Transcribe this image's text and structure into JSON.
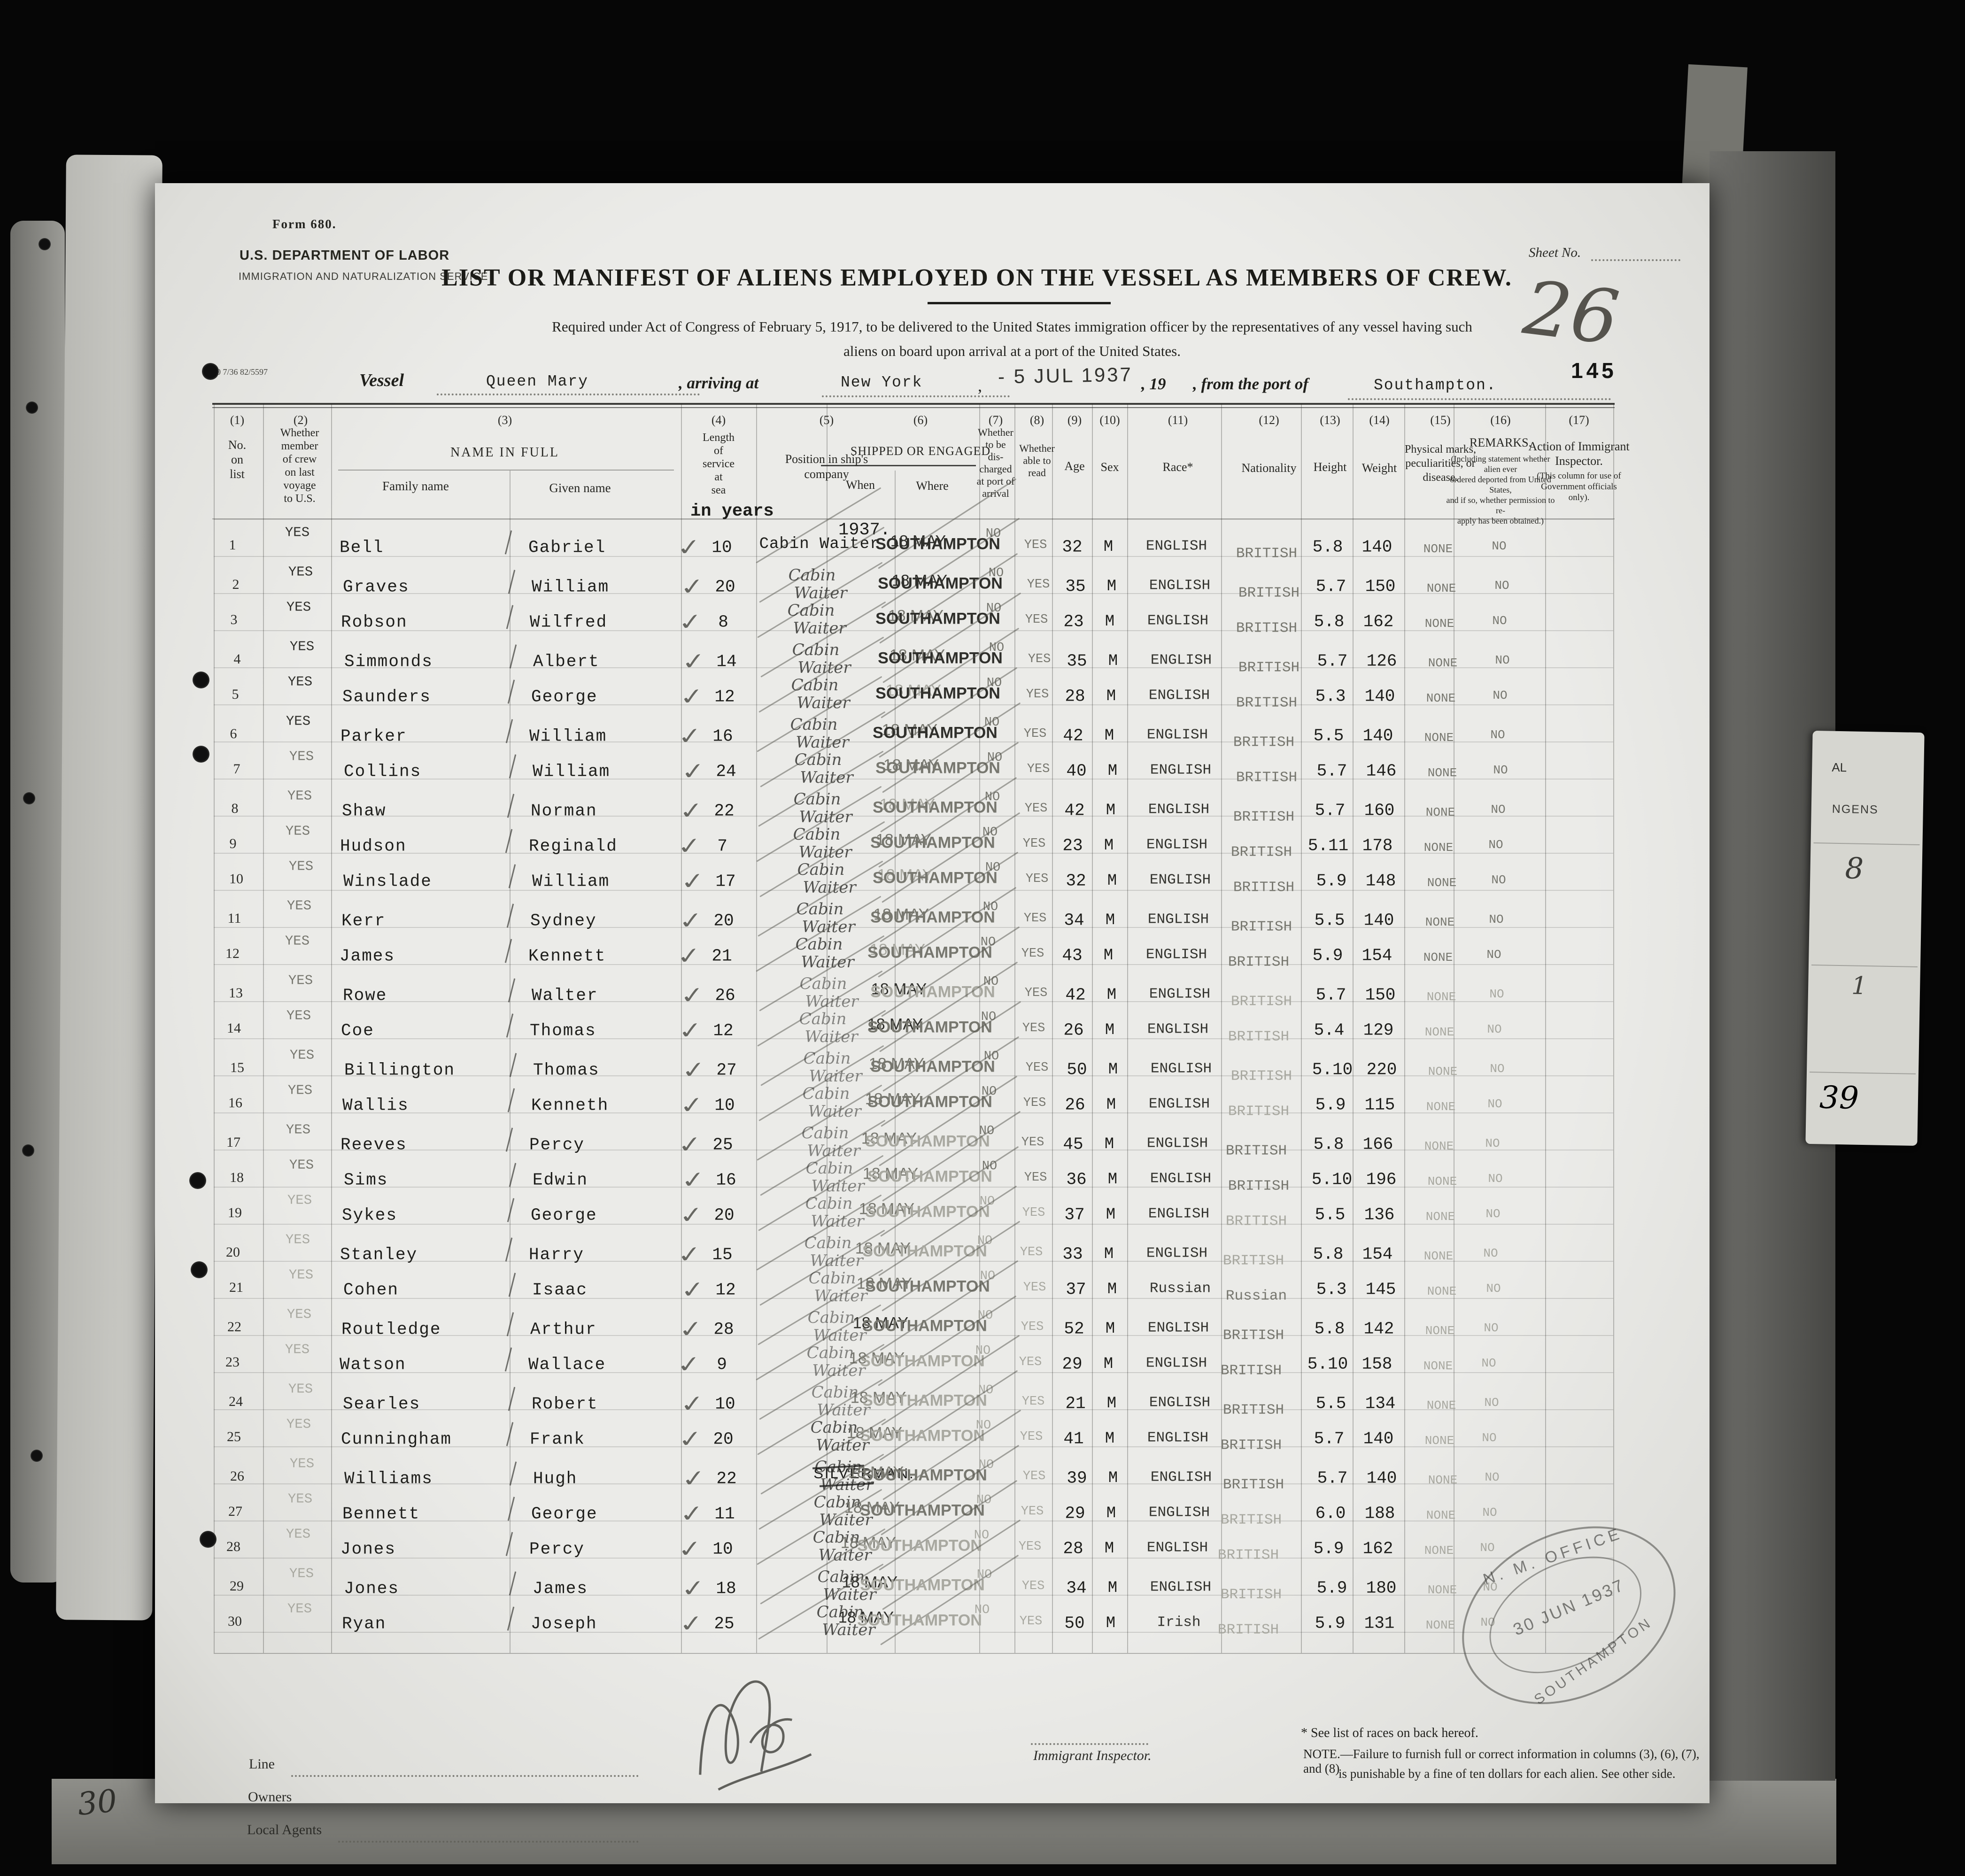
{
  "scan": {
    "sheet_no_handwritten": "26",
    "page_number_stamp": "145",
    "bottom_left_handwritten": "30",
    "form_print_code": "00 7/36 82/5597",
    "office_stamp": {
      "line1": "N. M. OFFICE",
      "line2": "30 JUN 1937",
      "line3": "SOUTHAMPTON"
    },
    "side_tab_fragments": [
      "AL",
      "NGENS",
      "8",
      "1",
      "39"
    ]
  },
  "form": {
    "form_code": "Form 680.",
    "department": "U.S. DEPARTMENT OF LABOR",
    "bureau": "IMMIGRATION AND NATURALIZATION SERVICE",
    "sheet_label": "Sheet No.",
    "title": "LIST OR MANIFEST OF ALIENS EMPLOYED ON THE VESSEL AS MEMBERS OF CREW.",
    "required_line1": "Required under Act of Congress of February 5, 1917, to be delivered to the United States immigration officer by the representatives of any vessel having such",
    "required_line2": "aliens on board upon arrival at a port of the United States.",
    "vessel_label": "Vessel",
    "vessel_name": "Queen Mary",
    "arriving_label": ", arriving at",
    "arrival_port": "New York",
    "arrival_date_stamp": "- 5 JUL 1937",
    "year_label": ", 19",
    "from_port_label": ", from the port of",
    "departure_port": "Southampton."
  },
  "table": {
    "headers": {
      "numbers": [
        "(1)",
        "(2)",
        "(3)",
        "(4)",
        "(5)",
        "(6)",
        "(7)",
        "(8)",
        "(9)",
        "(10)",
        "(11)",
        "(12)",
        "(13)",
        "(14)",
        "(15)",
        "(16)",
        "(17)"
      ],
      "c1": "No.\non\nlist",
      "c2": "Whether\nmember\nof crew\non last\nvoyage\nto U.S.",
      "c3": "NAME IN FULL",
      "c3a": "Family name",
      "c3b": "Given name",
      "c4": "Length\nof\nservice\nat\nsea",
      "c4_typed": "in years",
      "c5": "Position in ship's\ncompany",
      "c6": "SHIPPED OR ENGAGED",
      "c6a": "When",
      "c6b": "Where",
      "c6_year": "1937.",
      "c7": "Whether\nto be\ndis-\ncharged\nat port of\narrival",
      "c8": "Whether\nable to\nread",
      "c9": "Age",
      "c10": "Sex",
      "c11": "Race*",
      "c12": "Nationality",
      "c13": "Height",
      "c14": "Weight",
      "c15": "Physical marks,\npeculiarities, or\ndisease.",
      "c16_title": "REMARKS.",
      "c16_sub": "(Including statement whether alien ever\nordered deported from United States,\nand if so, whether permission to re-\napply has been obtained.)",
      "c17_title": "Action of Immigrant\nInspector.",
      "c17_sub": "(This column for use of\nGovernment officials only)."
    },
    "rows": [
      {
        "no": "1",
        "member": "YES",
        "family": "Bell",
        "given": "Gabriel",
        "service": "10",
        "position": "Cabin Waiter",
        "when": "18 MAY",
        "where": "SOUTHAMPTON",
        "discharged": "NO",
        "read": "YES",
        "age": "32",
        "sex": "M",
        "race": "ENGLISH",
        "nationality": "BRITISH",
        "height": "5.8",
        "weight": "140",
        "marks": "NONE",
        "remarks": "NO"
      },
      {
        "no": "2",
        "member": "YES",
        "family": "Graves",
        "given": "William",
        "service": "20",
        "position": "Cabin Waiter",
        "when": "18 MAY",
        "where": "SOUTHAMPTON",
        "discharged": "NO",
        "read": "YES",
        "age": "35",
        "sex": "M",
        "race": "ENGLISH",
        "nationality": "BRITISH",
        "height": "5.7",
        "weight": "150",
        "marks": "NONE",
        "remarks": "NO"
      },
      {
        "no": "3",
        "member": "YES",
        "family": "Robson",
        "given": "Wilfred",
        "service": "8",
        "position": "Cabin Waiter",
        "when": "18 MAY",
        "where": "SOUTHAMPTON",
        "discharged": "NO",
        "read": "YES",
        "age": "23",
        "sex": "M",
        "race": "ENGLISH",
        "nationality": "BRITISH",
        "height": "5.8",
        "weight": "162",
        "marks": "NONE",
        "remarks": "NO"
      },
      {
        "no": "4",
        "member": "YES",
        "family": "Simmonds",
        "given": "Albert",
        "service": "14",
        "position": "Cabin Waiter",
        "when": "18 MAY",
        "where": "SOUTHAMPTON",
        "discharged": "NO",
        "read": "YES",
        "age": "35",
        "sex": "M",
        "race": "ENGLISH",
        "nationality": "BRITISH",
        "height": "5.7",
        "weight": "126",
        "marks": "NONE",
        "remarks": "NO"
      },
      {
        "no": "5",
        "member": "YES",
        "family": "Saunders",
        "given": "George",
        "service": "12",
        "position": "Cabin Waiter",
        "when": "18 MAY",
        "where": "SOUTHAMPTON",
        "discharged": "NO",
        "read": "YES",
        "age": "28",
        "sex": "M",
        "race": "ENGLISH",
        "nationality": "BRITISH",
        "height": "5.3",
        "weight": "140",
        "marks": "NONE",
        "remarks": "NO"
      },
      {
        "no": "6",
        "member": "YES",
        "family": "Parker",
        "given": "William",
        "service": "16",
        "position": "Cabin Waiter",
        "when": "18 MAY",
        "where": "SOUTHAMPTON",
        "discharged": "NO",
        "read": "YES",
        "age": "42",
        "sex": "M",
        "race": "ENGLISH",
        "nationality": "BRITISH",
        "height": "5.5",
        "weight": "140",
        "marks": "NONE",
        "remarks": "NO"
      },
      {
        "no": "7",
        "member": "YES",
        "family": "Collins",
        "given": "William",
        "service": "24",
        "position": "Cabin Waiter",
        "when": "18 MAY",
        "where": "SOUTHAMPTON",
        "discharged": "NO",
        "read": "YES",
        "age": "40",
        "sex": "M",
        "race": "ENGLISH",
        "nationality": "BRITISH",
        "height": "5.7",
        "weight": "146",
        "marks": "NONE",
        "remarks": "NO"
      },
      {
        "no": "8",
        "member": "YES",
        "family": "Shaw",
        "given": "Norman",
        "service": "22",
        "position": "Cabin Waiter",
        "when": "18 MAY",
        "where": "SOUTHAMPTON",
        "discharged": "NO",
        "read": "YES",
        "age": "42",
        "sex": "M",
        "race": "ENGLISH",
        "nationality": "BRITISH",
        "height": "5.7",
        "weight": "160",
        "marks": "NONE",
        "remarks": "NO"
      },
      {
        "no": "9",
        "member": "YES",
        "family": "Hudson",
        "given": "Reginald",
        "service": "7",
        "position": "Cabin Waiter",
        "when": "18 MAY",
        "where": "SOUTHAMPTON",
        "discharged": "NO",
        "read": "YES",
        "age": "23",
        "sex": "M",
        "race": "ENGLISH",
        "nationality": "BRITISH",
        "height": "5.11",
        "weight": "178",
        "marks": "NONE",
        "remarks": "NO"
      },
      {
        "no": "10",
        "member": "YES",
        "family": "Winslade",
        "given": "William",
        "service": "17",
        "position": "Cabin Waiter",
        "when": "18 MAY",
        "where": "SOUTHAMPTON",
        "discharged": "NO",
        "read": "YES",
        "age": "32",
        "sex": "M",
        "race": "ENGLISH",
        "nationality": "BRITISH",
        "height": "5.9",
        "weight": "148",
        "marks": "NONE",
        "remarks": "NO"
      },
      {
        "no": "11",
        "member": "YES",
        "family": "Kerr",
        "given": "Sydney",
        "service": "20",
        "position": "Cabin Waiter",
        "when": "18 MAY",
        "where": "SOUTHAMPTON",
        "discharged": "NO",
        "read": "YES",
        "age": "34",
        "sex": "M",
        "race": "ENGLISH",
        "nationality": "BRITISH",
        "height": "5.5",
        "weight": "140",
        "marks": "NONE",
        "remarks": "NO"
      },
      {
        "no": "12",
        "member": "YES",
        "family": "James",
        "given": "Kennett",
        "service": "21",
        "position": "Cabin Waiter",
        "when": "18 MAY",
        "where": "SOUTHAMPTON",
        "discharged": "NO",
        "read": "YES",
        "age": "43",
        "sex": "M",
        "race": "ENGLISH",
        "nationality": "BRITISH",
        "height": "5.9",
        "weight": "154",
        "marks": "NONE",
        "remarks": "NO"
      },
      {
        "no": "13",
        "member": "YES",
        "family": "Rowe",
        "given": "Walter",
        "service": "26",
        "position": "Cabin Waiter",
        "when": "18 MAY",
        "where": "SOUTHAMPTON",
        "discharged": "NO",
        "read": "YES",
        "age": "42",
        "sex": "M",
        "race": "ENGLISH",
        "nationality": "BRITISH",
        "height": "5.7",
        "weight": "150",
        "marks": "NONE",
        "remarks": "NO"
      },
      {
        "no": "14",
        "member": "YES",
        "family": "Coe",
        "given": "Thomas",
        "service": "12",
        "position": "Cabin Waiter",
        "when": "18 MAY",
        "where": "SOUTHAMPTON",
        "discharged": "NO",
        "read": "YES",
        "age": "26",
        "sex": "M",
        "race": "ENGLISH",
        "nationality": "BRITISH",
        "height": "5.4",
        "weight": "129",
        "marks": "NONE",
        "remarks": "NO"
      },
      {
        "no": "15",
        "member": "YES",
        "family": "Billington",
        "given": "Thomas",
        "service": "27",
        "position": "Cabin Waiter",
        "when": "18 MAY",
        "where": "SOUTHAMPTON",
        "discharged": "NO",
        "read": "YES",
        "age": "50",
        "sex": "M",
        "race": "ENGLISH",
        "nationality": "BRITISH",
        "height": "5.10",
        "weight": "220",
        "marks": "NONE",
        "remarks": "NO"
      },
      {
        "no": "16",
        "member": "YES",
        "family": "Wallis",
        "given": "Kenneth",
        "service": "10",
        "position": "Cabin Waiter",
        "when": "18 MAY",
        "where": "SOUTHAMPTON",
        "discharged": "NO",
        "read": "YES",
        "age": "26",
        "sex": "M",
        "race": "ENGLISH",
        "nationality": "BRITISH",
        "height": "5.9",
        "weight": "115",
        "marks": "NONE",
        "remarks": "NO"
      },
      {
        "no": "17",
        "member": "YES",
        "family": "Reeves",
        "given": "Percy",
        "service": "25",
        "position": "Cabin Waiter",
        "when": "18 MAY",
        "where": "SOUTHAMPTON",
        "discharged": "NO",
        "read": "YES",
        "age": "45",
        "sex": "M",
        "race": "ENGLISH",
        "nationality": "BRITISH",
        "height": "5.8",
        "weight": "166",
        "marks": "NONE",
        "remarks": "NO"
      },
      {
        "no": "18",
        "member": "YES",
        "family": "Sims",
        "given": "Edwin",
        "service": "16",
        "position": "Cabin Waiter",
        "when": "18 MAY",
        "where": "SOUTHAMPTON",
        "discharged": "NO",
        "read": "YES",
        "age": "36",
        "sex": "M",
        "race": "ENGLISH",
        "nationality": "BRITISH",
        "height": "5.10",
        "weight": "196",
        "marks": "NONE",
        "remarks": "NO"
      },
      {
        "no": "19",
        "member": "YES",
        "family": "Sykes",
        "given": "George",
        "service": "20",
        "position": "Cabin Waiter",
        "when": "18 MAY",
        "where": "SOUTHAMPTON",
        "discharged": "NO",
        "read": "YES",
        "age": "37",
        "sex": "M",
        "race": "ENGLISH",
        "nationality": "BRITISH",
        "height": "5.5",
        "weight": "136",
        "marks": "NONE",
        "remarks": "NO"
      },
      {
        "no": "20",
        "member": "YES",
        "family": "Stanley",
        "given": "Harry",
        "service": "15",
        "position": "Cabin Waiter",
        "when": "18 MAY",
        "where": "SOUTHAMPTON",
        "discharged": "NO",
        "read": "YES",
        "age": "33",
        "sex": "M",
        "race": "ENGLISH",
        "nationality": "BRITISH",
        "height": "5.8",
        "weight": "154",
        "marks": "NONE",
        "remarks": "NO"
      },
      {
        "no": "21",
        "member": "YES",
        "family": "Cohen",
        "given": "Isaac",
        "service": "12",
        "position": "Cabin Waiter",
        "when": "18 MAY",
        "where": "SOUTHAMPTON",
        "discharged": "NO",
        "read": "YES",
        "age": "37",
        "sex": "M",
        "race": "Russian",
        "nationality": "Russian",
        "height": "5.3",
        "weight": "145",
        "marks": "NONE",
        "remarks": "NO"
      },
      {
        "no": "22",
        "member": "YES",
        "family": "Routledge",
        "given": "Arthur",
        "service": "28",
        "position": "Cabin Waiter",
        "when": "18 MAY",
        "where": "SOUTHAMPTON",
        "discharged": "NO",
        "read": "YES",
        "age": "52",
        "sex": "M",
        "race": "ENGLISH",
        "nationality": "BRITISH",
        "height": "5.8",
        "weight": "142",
        "marks": "NONE",
        "remarks": "NO"
      },
      {
        "no": "23",
        "member": "YES",
        "family": "Watson",
        "given": "Wallace",
        "service": "9",
        "position": "Cabin Waiter",
        "when": "18 MAY",
        "where": "SOUTHAMPTON",
        "discharged": "NO",
        "read": "YES",
        "age": "29",
        "sex": "M",
        "race": "ENGLISH",
        "nationality": "BRITISH",
        "height": "5.10",
        "weight": "158",
        "marks": "NONE",
        "remarks": "NO"
      },
      {
        "no": "24",
        "member": "YES",
        "family": "Searles",
        "given": "Robert",
        "service": "10",
        "position": "Cabin Waiter",
        "when": "18 MAY",
        "where": "SOUTHAMPTON",
        "discharged": "NO",
        "read": "YES",
        "age": "21",
        "sex": "M",
        "race": "ENGLISH",
        "nationality": "BRITISH",
        "height": "5.5",
        "weight": "134",
        "marks": "NONE",
        "remarks": "NO"
      },
      {
        "no": "25",
        "member": "YES",
        "family": "Cunningham",
        "given": "Frank",
        "service": "20",
        "position": "Cabin Waiter",
        "when": "18 MAY",
        "where": "SOUTHAMPTON",
        "discharged": "NO",
        "read": "YES",
        "age": "41",
        "sex": "M",
        "race": "ENGLISH",
        "nationality": "BRITISH",
        "height": "5.7",
        "weight": "140",
        "marks": "NONE",
        "remarks": "NO"
      },
      {
        "no": "26",
        "member": "YES",
        "family": "Williams",
        "given": "Hugh",
        "service": "22",
        "position": "Cabin Waiter",
        "position_note": "SILVERMAN.",
        "when": "18 MAY",
        "where": "SOUTHAMPTON",
        "discharged": "NO",
        "read": "YES",
        "age": "39",
        "sex": "M",
        "race": "ENGLISH",
        "nationality": "BRITISH",
        "height": "5.7",
        "weight": "140",
        "marks": "NONE",
        "remarks": "NO"
      },
      {
        "no": "27",
        "member": "YES",
        "family": "Bennett",
        "given": "George",
        "service": "11",
        "position": "Cabin Waiter",
        "when": "18 MAY",
        "where": "SOUTHAMPTON",
        "discharged": "NO",
        "read": "YES",
        "age": "29",
        "sex": "M",
        "race": "ENGLISH",
        "nationality": "BRITISH",
        "height": "6.0",
        "weight": "188",
        "marks": "NONE",
        "remarks": "NO"
      },
      {
        "no": "28",
        "member": "YES",
        "family": "Jones",
        "given": "Percy",
        "service": "10",
        "position": "Cabin Waiter",
        "when": "18 MAY",
        "where": "SOUTHAMPTON",
        "discharged": "NO",
        "read": "YES",
        "age": "28",
        "sex": "M",
        "race": "ENGLISH",
        "nationality": "BRITISH",
        "height": "5.9",
        "weight": "162",
        "marks": "NONE",
        "remarks": "NO"
      },
      {
        "no": "29",
        "member": "YES",
        "family": "Jones",
        "given": "James",
        "service": "18",
        "position": "Cabin Waiter",
        "when": "18 MAY",
        "where": "SOUTHAMPTON",
        "discharged": "NO",
        "read": "YES",
        "age": "34",
        "sex": "M",
        "race": "ENGLISH",
        "nationality": "BRITISH",
        "height": "5.9",
        "weight": "180",
        "marks": "NONE",
        "remarks": "NO"
      },
      {
        "no": "30",
        "member": "YES",
        "family": "Ryan",
        "given": "Joseph",
        "service": "25",
        "position": "Cabin Waiter",
        "when": "18 MAY",
        "where": "SOUTHAMPTON",
        "discharged": "NO",
        "read": "YES",
        "age": "50",
        "sex": "M",
        "race": "Irish",
        "nationality": "BRITISH",
        "height": "5.9",
        "weight": "131",
        "marks": "NONE",
        "remarks": "NO"
      }
    ]
  },
  "footer": {
    "line_label": "Line",
    "owners_label": "Owners",
    "local_agents_label": "Local Agents",
    "inspector_label": "Immigrant Inspector.",
    "races_footnote": "* See list of races on back hereof.",
    "note_line1": "NOTE.—Failure to furnish full or correct information in columns (3), (6), (7), and (8)",
    "note_line2": "is punishable by a fine of ten dollars for each alien.  See other side."
  }
}
